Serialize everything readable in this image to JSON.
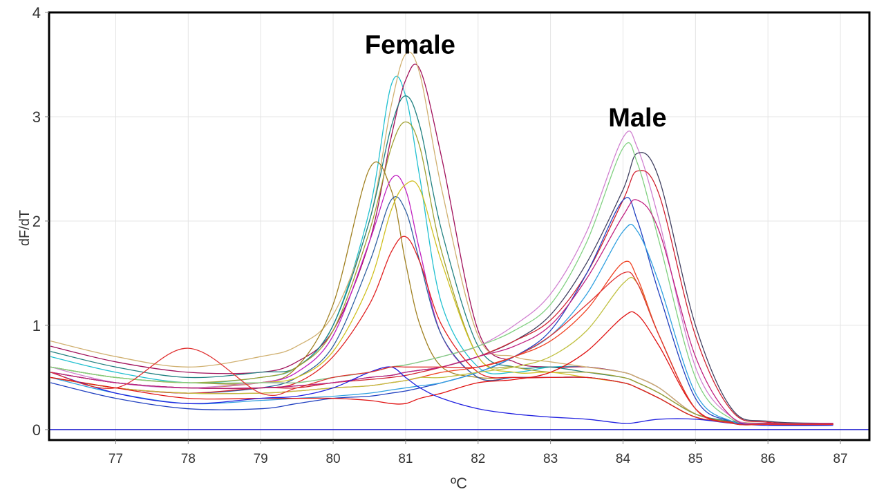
{
  "chart_data": {
    "type": "line",
    "xlabel": "ºC",
    "ylabel": "dF/dT",
    "xlim": [
      76.08,
      87.4
    ],
    "ylim": [
      -0.1,
      4
    ],
    "grid": true,
    "x_ticks": [
      "77",
      "78",
      "79",
      "80",
      "81",
      "82",
      "83",
      "84",
      "85",
      "86",
      "87"
    ],
    "y_ticks": [
      "0",
      "1",
      "2",
      "3",
      "4"
    ],
    "annotations": [
      {
        "text": "Female",
        "x": 81.1,
        "y": 3.7
      },
      {
        "text": "Male",
        "x": 84.2,
        "y": 3.0
      }
    ],
    "baseline": {
      "y": 0,
      "color": "#2020d0"
    },
    "x": [
      76.1,
      77,
      78,
      79,
      79.5,
      80,
      80.5,
      80.8,
      81,
      81.2,
      81.5,
      82,
      82.5,
      83,
      83.5,
      84,
      84.2,
      84.5,
      85,
      85.5,
      86,
      86.9
    ],
    "series": [
      {
        "color": "#20c0d0",
        "values": [
          0.7,
          0.55,
          0.45,
          0.5,
          0.6,
          1.0,
          2.1,
          3.3,
          3.2,
          2.4,
          1.2,
          0.6,
          0.55,
          0.6,
          0.6,
          0.55,
          0.5,
          0.4,
          0.15,
          0.08,
          0.05,
          0.05
        ]
      },
      {
        "color": "#a0105a",
        "values": [
          0.8,
          0.65,
          0.55,
          0.55,
          0.65,
          0.95,
          1.8,
          2.8,
          3.35,
          3.45,
          2.6,
          0.95,
          0.65,
          0.6,
          0.6,
          0.55,
          0.5,
          0.4,
          0.15,
          0.08,
          0.05,
          0.05
        ]
      },
      {
        "color": "#d0b070",
        "values": [
          0.85,
          0.7,
          0.6,
          0.7,
          0.8,
          1.1,
          2.0,
          3.1,
          3.6,
          3.4,
          2.3,
          0.9,
          0.7,
          0.65,
          0.6,
          0.55,
          0.5,
          0.4,
          0.15,
          0.08,
          0.06,
          0.06
        ]
      },
      {
        "color": "#208080",
        "values": [
          0.75,
          0.6,
          0.5,
          0.55,
          0.6,
          1.0,
          2.0,
          2.9,
          3.2,
          2.9,
          1.9,
          0.8,
          0.6,
          0.6,
          0.55,
          0.5,
          0.45,
          0.35,
          0.15,
          0.08,
          0.05,
          0.05
        ]
      },
      {
        "color": "#a0a030",
        "values": [
          0.6,
          0.5,
          0.45,
          0.5,
          0.6,
          0.95,
          1.9,
          2.7,
          2.95,
          2.7,
          1.7,
          0.7,
          0.6,
          0.55,
          0.55,
          0.5,
          0.45,
          0.35,
          0.15,
          0.07,
          0.05,
          0.05
        ]
      },
      {
        "color": "#a08020",
        "values": [
          0.6,
          0.5,
          0.45,
          0.45,
          0.6,
          1.2,
          2.5,
          2.3,
          1.6,
          1.0,
          0.6,
          0.5,
          0.5,
          0.5,
          0.5,
          0.45,
          0.4,
          0.3,
          0.12,
          0.07,
          0.05,
          0.05
        ]
      },
      {
        "color": "#c020c0",
        "values": [
          0.55,
          0.45,
          0.4,
          0.45,
          0.55,
          0.9,
          1.8,
          2.4,
          2.3,
          1.7,
          0.9,
          0.5,
          0.5,
          0.5,
          0.5,
          0.45,
          0.4,
          0.3,
          0.12,
          0.07,
          0.05,
          0.05
        ]
      },
      {
        "color": "#3060a0",
        "values": [
          0.5,
          0.4,
          0.35,
          0.4,
          0.5,
          0.8,
          1.6,
          2.2,
          2.1,
          1.6,
          0.9,
          0.5,
          0.5,
          0.5,
          0.5,
          0.45,
          0.4,
          0.3,
          0.12,
          0.07,
          0.05,
          0.05
        ]
      },
      {
        "color": "#d0c020",
        "values": [
          0.55,
          0.45,
          0.4,
          0.45,
          0.5,
          0.75,
          1.4,
          2.1,
          2.35,
          2.3,
          1.6,
          0.7,
          0.55,
          0.55,
          0.5,
          0.45,
          0.4,
          0.3,
          0.12,
          0.07,
          0.05,
          0.05
        ]
      },
      {
        "color": "#e02020",
        "values": [
          0.55,
          0.45,
          0.4,
          0.4,
          0.45,
          0.7,
          1.2,
          1.7,
          1.85,
          1.6,
          1.0,
          0.55,
          0.5,
          0.5,
          0.5,
          0.45,
          0.4,
          0.3,
          0.12,
          0.07,
          0.05,
          0.05
        ]
      },
      {
        "color": "#d080d0",
        "values": [
          0.6,
          0.45,
          0.4,
          0.45,
          0.45,
          0.5,
          0.55,
          0.6,
          0.62,
          0.65,
          0.7,
          0.8,
          1.0,
          1.3,
          1.9,
          2.8,
          2.7,
          2.0,
          0.6,
          0.12,
          0.06,
          0.06
        ]
      },
      {
        "color": "#404060",
        "values": [
          0.55,
          0.45,
          0.4,
          0.4,
          0.42,
          0.45,
          0.5,
          0.52,
          0.55,
          0.57,
          0.6,
          0.7,
          0.85,
          1.1,
          1.6,
          2.3,
          2.65,
          2.4,
          1.0,
          0.2,
          0.08,
          0.06
        ]
      },
      {
        "color": "#d02030",
        "values": [
          0.5,
          0.4,
          0.35,
          0.4,
          0.4,
          0.45,
          0.48,
          0.5,
          0.52,
          0.55,
          0.6,
          0.7,
          0.85,
          1.05,
          1.5,
          2.2,
          2.48,
          2.25,
          0.9,
          0.18,
          0.07,
          0.06
        ]
      },
      {
        "color": "#2040c0",
        "values": [
          0.45,
          0.3,
          0.2,
          0.2,
          0.25,
          0.3,
          0.32,
          0.35,
          0.37,
          0.4,
          0.45,
          0.55,
          0.7,
          0.95,
          1.5,
          2.2,
          2.0,
          1.3,
          0.3,
          0.08,
          0.05,
          0.05
        ]
      },
      {
        "color": "#80d080",
        "values": [
          0.6,
          0.5,
          0.45,
          0.45,
          0.45,
          0.5,
          0.55,
          0.6,
          0.62,
          0.65,
          0.7,
          0.8,
          0.95,
          1.2,
          1.8,
          2.7,
          2.55,
          1.8,
          0.5,
          0.1,
          0.06,
          0.06
        ]
      },
      {
        "color": "#30a0e0",
        "values": [
          0.5,
          0.35,
          0.25,
          0.28,
          0.3,
          0.32,
          0.35,
          0.38,
          0.4,
          0.42,
          0.45,
          0.55,
          0.7,
          0.9,
          1.3,
          1.9,
          1.9,
          1.4,
          0.35,
          0.08,
          0.05,
          0.05
        ]
      },
      {
        "color": "#c02080",
        "values": [
          0.55,
          0.45,
          0.4,
          0.4,
          0.42,
          0.45,
          0.5,
          0.52,
          0.55,
          0.57,
          0.6,
          0.7,
          0.8,
          1.0,
          1.45,
          2.05,
          2.2,
          1.9,
          0.7,
          0.12,
          0.06,
          0.06
        ]
      },
      {
        "color": "#f04020",
        "values": [
          0.5,
          0.4,
          0.35,
          0.35,
          0.37,
          0.4,
          0.42,
          0.45,
          0.47,
          0.5,
          0.55,
          0.6,
          0.7,
          0.85,
          1.15,
          1.6,
          1.45,
          0.9,
          0.2,
          0.06,
          0.05,
          0.05
        ]
      },
      {
        "color": "#c0c040",
        "values": [
          0.5,
          0.4,
          0.35,
          0.35,
          0.37,
          0.4,
          0.42,
          0.45,
          0.47,
          0.5,
          0.5,
          0.55,
          0.6,
          0.7,
          0.95,
          1.4,
          1.4,
          0.9,
          0.2,
          0.06,
          0.05,
          0.05
        ]
      },
      {
        "color": "#e01010",
        "values": [
          0.5,
          0.4,
          0.3,
          0.3,
          0.3,
          0.3,
          0.28,
          0.25,
          0.25,
          0.3,
          0.35,
          0.45,
          0.48,
          0.55,
          0.75,
          1.08,
          1.1,
          0.8,
          0.2,
          0.06,
          0.05,
          0.05
        ]
      },
      {
        "color": "#2020e0",
        "values": [
          0.55,
          0.35,
          0.25,
          0.3,
          0.32,
          0.4,
          0.55,
          0.6,
          0.5,
          0.4,
          0.3,
          0.2,
          0.15,
          0.12,
          0.1,
          0.06,
          0.07,
          0.1,
          0.1,
          0.06,
          0.04,
          0.04
        ]
      },
      {
        "color": "#e03030",
        "values": [
          0.55,
          0.4,
          0.78,
          0.35,
          0.4,
          0.5,
          0.55,
          0.6,
          0.6,
          0.6,
          0.6,
          0.6,
          0.7,
          0.9,
          1.2,
          1.5,
          1.4,
          0.9,
          0.2,
          0.06,
          0.05,
          0.05
        ]
      }
    ]
  }
}
